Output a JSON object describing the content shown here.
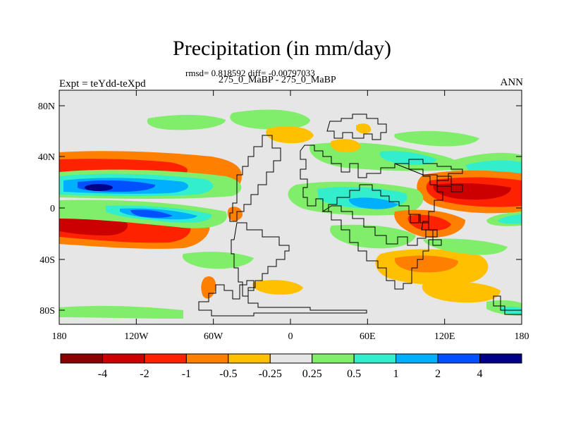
{
  "title": "Precipitation (in mm/day)",
  "stats_line": "rmsd= 0.818592 diff= -0.00797033",
  "experiment_subtitle": "275_0_MaBP - 275_0_MaBP",
  "experiment_label": "Expt = teYdd-teXpd",
  "season": "ANN",
  "y_ticks": [
    "80N",
    "40N",
    "0",
    "40S",
    "80S"
  ],
  "x_ticks": [
    "180",
    "120W",
    "60W",
    "0",
    "60E",
    "120E",
    "180"
  ],
  "colorbar": {
    "colors": [
      "#8b0000",
      "#cc0000",
      "#ff2200",
      "#ff7f00",
      "#ffc000",
      "#e6e6e6",
      "#80ee6a",
      "#33eecc",
      "#00b0ff",
      "#0050ff",
      "#000088"
    ],
    "labels": [
      "-4",
      "-2",
      "-1",
      "-0.5",
      "-0.25",
      "0.25",
      "0.5",
      "1",
      "2",
      "4"
    ]
  },
  "map_colors": {
    "ocean_background": "#e6e6e6",
    "coastline": "#000000"
  }
}
